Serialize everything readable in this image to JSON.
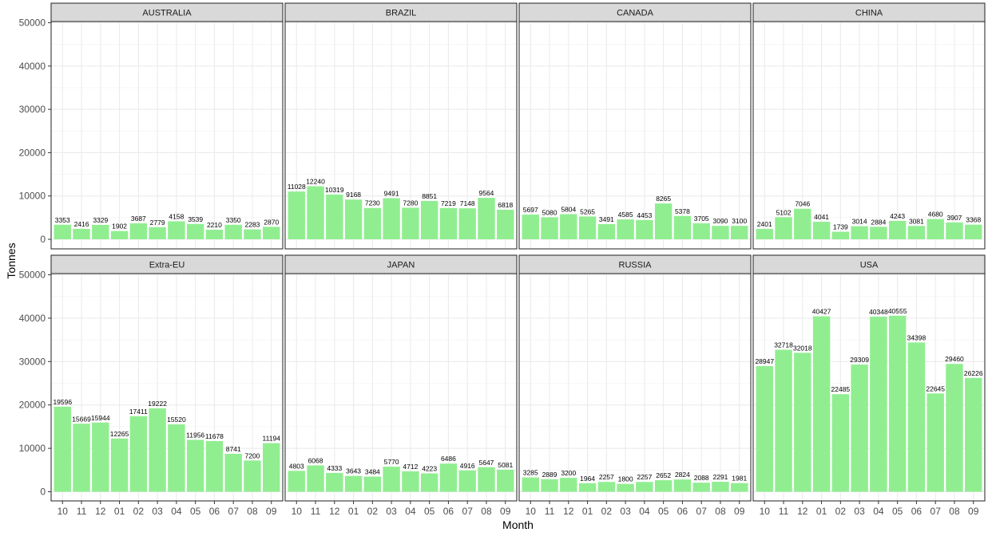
{
  "chart_data": {
    "type": "bar",
    "layout": "faceted 2x4 grid, shared y axis",
    "xlabel": "Month",
    "ylabel": "Tonnes",
    "categories": [
      "10",
      "11",
      "12",
      "01",
      "02",
      "03",
      "04",
      "05",
      "06",
      "07",
      "08",
      "09"
    ],
    "ylim": [
      0,
      50000
    ],
    "yticks": [
      0,
      10000,
      20000,
      30000,
      40000,
      50000
    ],
    "grid": true,
    "bar_color": "#90ee90",
    "strip_color": "#d9d9d9",
    "panels": [
      {
        "name": "AUSTRALIA",
        "values": [
          3353,
          2416,
          3329,
          1902,
          3687,
          2779,
          4158,
          3539,
          2210,
          3350,
          2283,
          2870
        ]
      },
      {
        "name": "BRAZIL",
        "values": [
          11028,
          12240,
          10319,
          9168,
          7230,
          9491,
          7280,
          8851,
          7219,
          7148,
          9564,
          6818
        ]
      },
      {
        "name": "CANADA",
        "values": [
          5697,
          5080,
          5804,
          5265,
          3491,
          4585,
          4453,
          8265,
          5378,
          3705,
          3090,
          3100
        ]
      },
      {
        "name": "CHINA",
        "values": [
          2401,
          5102,
          7046,
          4041,
          1739,
          3014,
          2884,
          4243,
          3081,
          4680,
          3907,
          3368
        ]
      },
      {
        "name": "Extra-EU",
        "values": [
          19596,
          15669,
          15944,
          12265,
          17411,
          19222,
          15520,
          11956,
          11678,
          8741,
          7200,
          11194
        ]
      },
      {
        "name": "JAPAN",
        "values": [
          4803,
          6068,
          4333,
          3643,
          3484,
          5770,
          4712,
          4223,
          6486,
          4916,
          5647,
          5081
        ]
      },
      {
        "name": "RUSSIA",
        "values": [
          3285,
          2889,
          3200,
          1964,
          2257,
          1800,
          2257,
          2652,
          2824,
          2088,
          2291,
          1981
        ]
      },
      {
        "name": "USA",
        "values": [
          28947,
          32718,
          32018,
          40427,
          22485,
          29309,
          40348,
          40555,
          34398,
          22645,
          29460,
          26226
        ]
      }
    ]
  }
}
